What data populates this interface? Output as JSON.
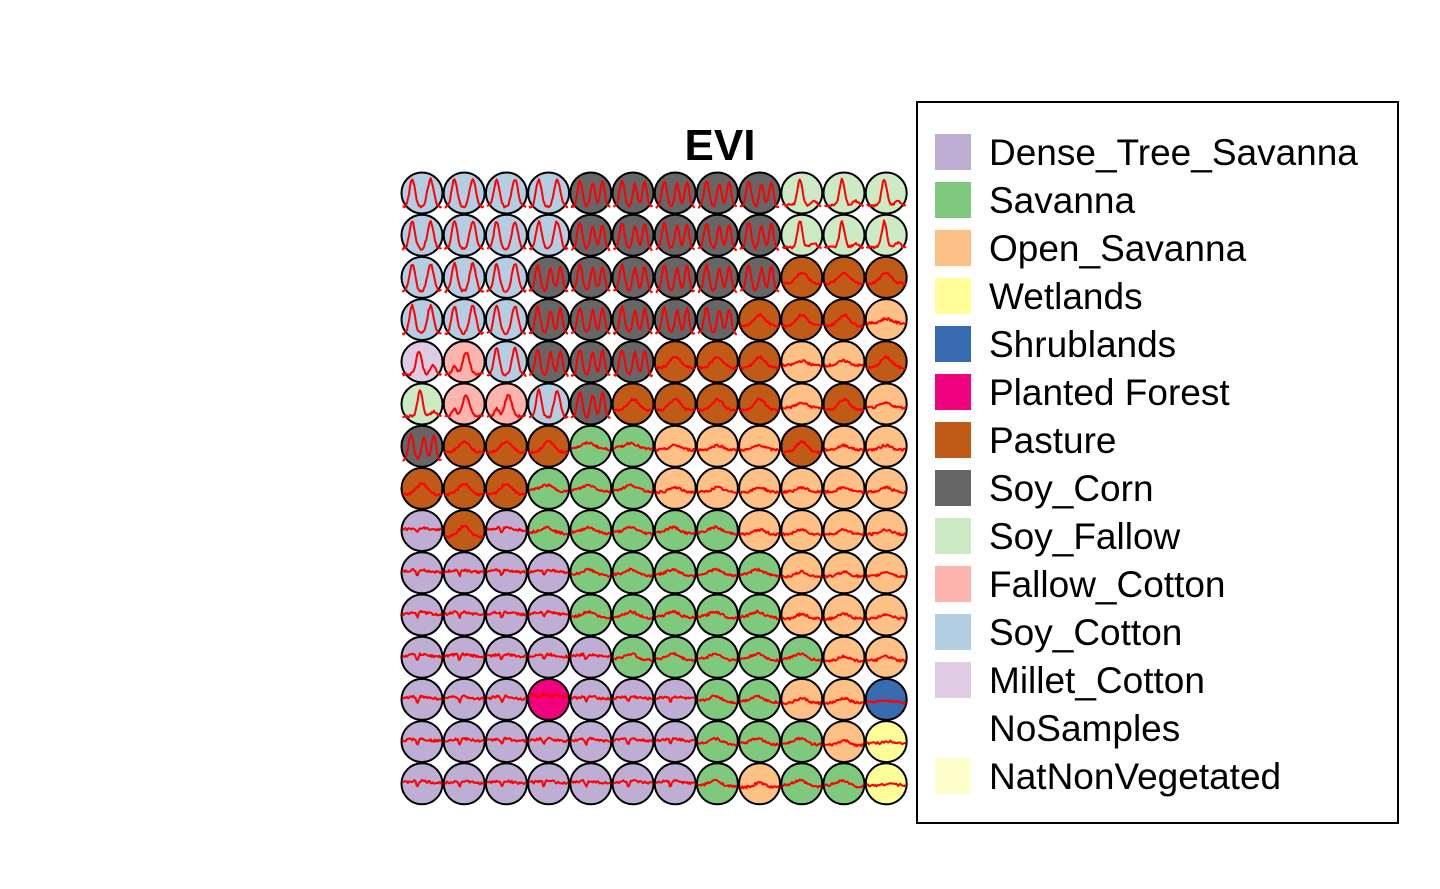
{
  "chart_data": {
    "type": "som-grid",
    "title": "EVI",
    "grid": {
      "cols": 15,
      "rows": 15,
      "shown_cols": 12
    },
    "trace_color": "#ff0000",
    "classes": [
      {
        "key": "DTS",
        "name": "Dense_Tree_Savanna",
        "color": "#beaed4"
      },
      {
        "key": "SAV",
        "name": "Savanna",
        "color": "#7fc97f"
      },
      {
        "key": "OS",
        "name": "Open_Savanna",
        "color": "#fdc086"
      },
      {
        "key": "WET",
        "name": "Wetlands",
        "color": "#ffff99"
      },
      {
        "key": "SHR",
        "name": "Shrublands",
        "color": "#386cb0"
      },
      {
        "key": "PF",
        "name": "Planted Forest",
        "color": "#f0027f"
      },
      {
        "key": "PAS",
        "name": "Pasture",
        "color": "#bf5b17"
      },
      {
        "key": "SC",
        "name": "Soy_Corn",
        "color": "#666666"
      },
      {
        "key": "SF",
        "name": "Soy_Fallow",
        "color": "#ccebc5"
      },
      {
        "key": "FC",
        "name": "Fallow_Cotton",
        "color": "#fbb4ae"
      },
      {
        "key": "SCO",
        "name": "Soy_Cotton",
        "color": "#b3cde3"
      },
      {
        "key": "MC",
        "name": "Millet_Cotton",
        "color": "#decbe4"
      },
      {
        "key": "NS",
        "name": "NoSamples",
        "color": "#ffffff"
      },
      {
        "key": "NNV",
        "name": "NatNonVegetated",
        "color": "#ffffcc"
      }
    ],
    "cells": [
      [
        "SCO",
        "SCO",
        "SCO",
        "SCO",
        "SC",
        "SC",
        "SC",
        "SC",
        "SC",
        "SF",
        "SF",
        "SF"
      ],
      [
        "SCO",
        "SCO",
        "SCO",
        "SCO",
        "SC",
        "SC",
        "SC",
        "SC",
        "SC",
        "SF",
        "SF",
        "SF"
      ],
      [
        "SCO",
        "SCO",
        "SCO",
        "SC",
        "SC",
        "SC",
        "SC",
        "SC",
        "SC",
        "PAS",
        "PAS",
        "PAS"
      ],
      [
        "SCO",
        "SCO",
        "SCO",
        "SC",
        "SC",
        "SC",
        "SC",
        "SC",
        "PAS",
        "PAS",
        "PAS",
        "OS"
      ],
      [
        "MC",
        "FC",
        "SCO",
        "SC",
        "SC",
        "SC",
        "PAS",
        "PAS",
        "PAS",
        "OS",
        "OS",
        "PAS"
      ],
      [
        "SF",
        "FC",
        "FC",
        "SCO",
        "SC",
        "PAS",
        "PAS",
        "PAS",
        "PAS",
        "OS",
        "PAS",
        "OS"
      ],
      [
        "SC",
        "PAS",
        "PAS",
        "PAS",
        "SAV",
        "SAV",
        "OS",
        "OS",
        "OS",
        "PAS",
        "OS",
        "OS"
      ],
      [
        "PAS",
        "PAS",
        "PAS",
        "SAV",
        "SAV",
        "SAV",
        "OS",
        "OS",
        "OS",
        "OS",
        "OS",
        "OS"
      ],
      [
        "DTS",
        "PAS",
        "DTS",
        "SAV",
        "SAV",
        "SAV",
        "SAV",
        "SAV",
        "OS",
        "OS",
        "OS",
        "OS"
      ],
      [
        "DTS",
        "DTS",
        "DTS",
        "DTS",
        "SAV",
        "SAV",
        "SAV",
        "SAV",
        "SAV",
        "OS",
        "OS",
        "OS"
      ],
      [
        "DTS",
        "DTS",
        "DTS",
        "DTS",
        "SAV",
        "SAV",
        "SAV",
        "SAV",
        "SAV",
        "OS",
        "OS",
        "OS"
      ],
      [
        "DTS",
        "DTS",
        "DTS",
        "DTS",
        "DTS",
        "SAV",
        "SAV",
        "SAV",
        "SAV",
        "SAV",
        "OS",
        "OS"
      ],
      [
        "DTS",
        "DTS",
        "DTS",
        "PF",
        "DTS",
        "DTS",
        "DTS",
        "SAV",
        "SAV",
        "OS",
        "OS",
        "SHR"
      ],
      [
        "DTS",
        "DTS",
        "DTS",
        "DTS",
        "DTS",
        "DTS",
        "DTS",
        "SAV",
        "SAV",
        "SAV",
        "OS",
        "WET"
      ],
      [
        "DTS",
        "DTS",
        "DTS",
        "DTS",
        "DTS",
        "DTS",
        "DTS",
        "SAV",
        "OS",
        "SAV",
        "SAV",
        "WET"
      ]
    ],
    "legend": {
      "position": "right",
      "frame": true
    }
  }
}
